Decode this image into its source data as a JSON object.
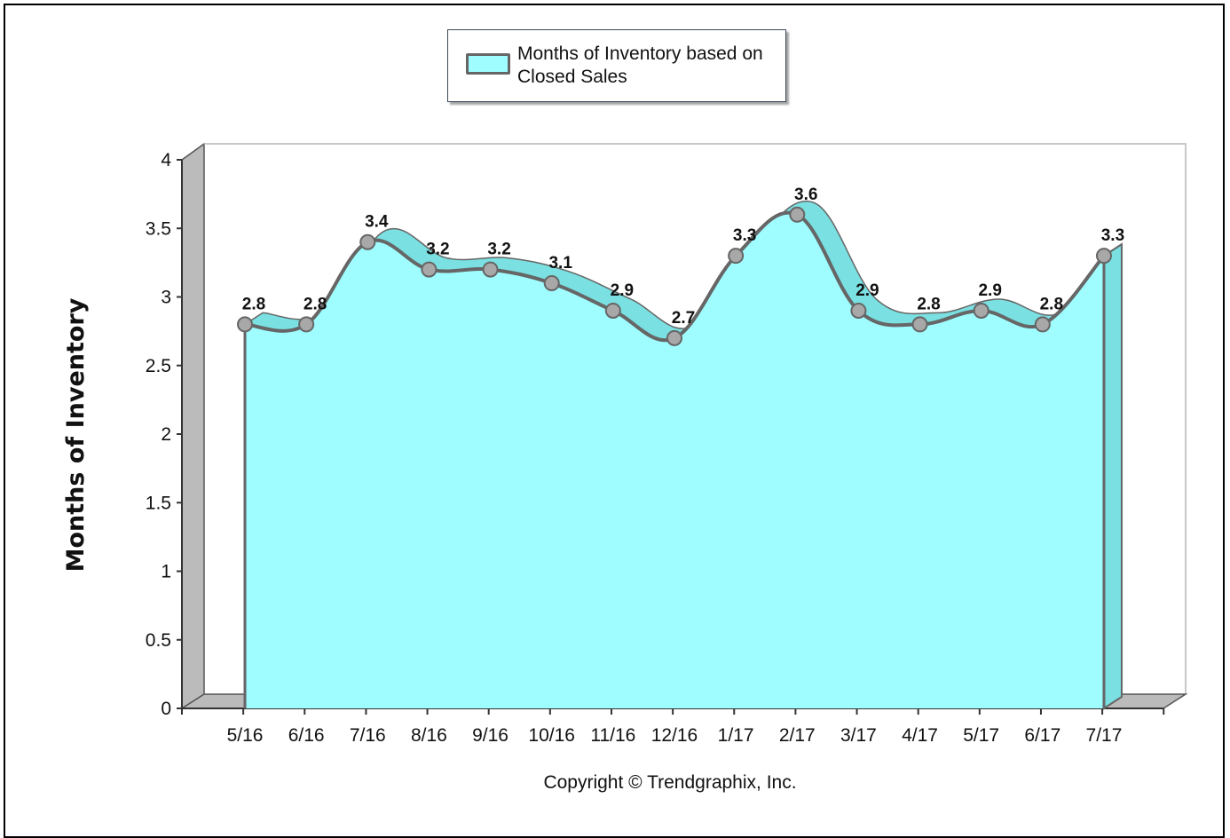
{
  "legend": {
    "series_label": "Months of Inventory based on Closed Sales"
  },
  "footer": {
    "copyright": "Copyright © Trendgraphix, Inc."
  },
  "colors": {
    "fill": "#9ffcff",
    "fill_side": "#7ae0e2",
    "line": "#666666",
    "point": "#a8a8a8",
    "wall": "#bbbbbb"
  },
  "chart_data": {
    "type": "area",
    "title": "",
    "xlabel": "",
    "ylabel": "Months of Inventory",
    "ylim": [
      0,
      4
    ],
    "yticks": [
      "0",
      "0.5",
      "1",
      "1.5",
      "2",
      "2.5",
      "3",
      "3.5",
      "4"
    ],
    "categories": [
      "5/16",
      "6/16",
      "7/16",
      "8/16",
      "9/16",
      "10/16",
      "11/16",
      "12/16",
      "1/17",
      "2/17",
      "3/17",
      "4/17",
      "5/17",
      "6/17",
      "7/17"
    ],
    "series": [
      {
        "name": "Months of Inventory based on Closed Sales",
        "values": [
          2.8,
          2.8,
          3.4,
          3.2,
          3.2,
          3.1,
          2.9,
          2.7,
          3.3,
          3.6,
          2.9,
          2.8,
          2.9,
          2.8,
          3.3
        ],
        "labels": [
          "2.8",
          "2.8",
          "3.4",
          "3.2",
          "3.2",
          "3.1",
          "2.9",
          "2.7",
          "3.3",
          "3.6",
          "2.9",
          "2.8",
          "2.9",
          "2.8",
          "3.3"
        ]
      }
    ],
    "grid": false,
    "legend_position": "top-center"
  }
}
